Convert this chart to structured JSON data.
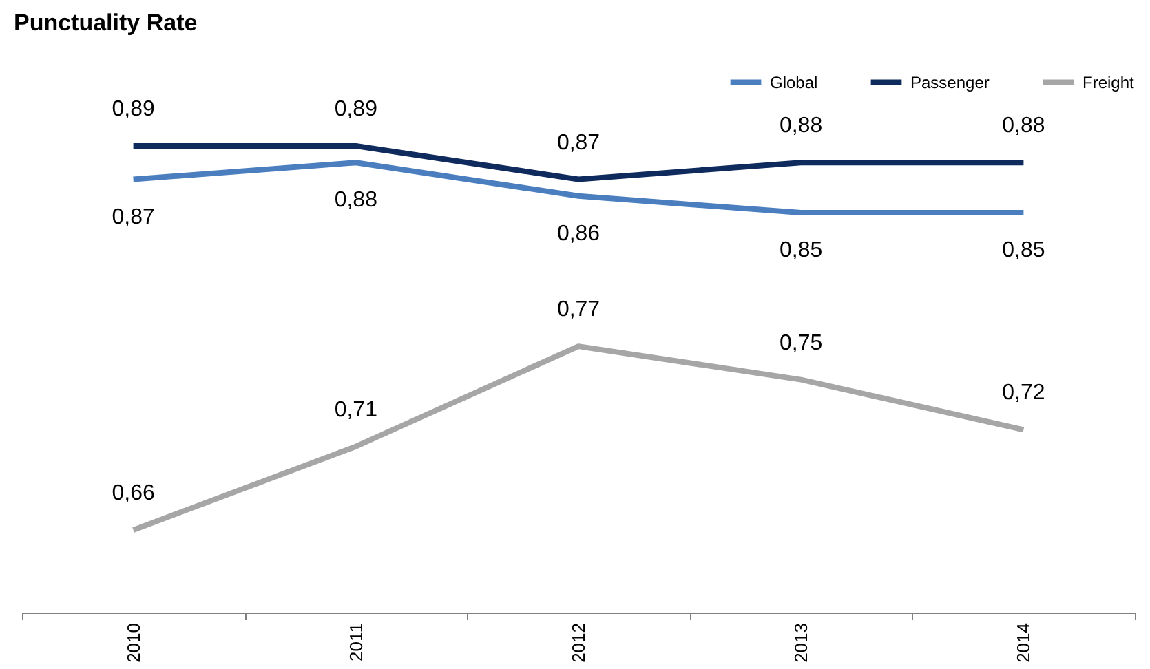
{
  "chart_data": {
    "type": "line",
    "title": "Punctuality Rate",
    "categories": [
      "2010",
      "2011",
      "2012",
      "2013",
      "2014"
    ],
    "series": [
      {
        "name": "Global",
        "color": "#4a7ebf",
        "values": [
          0.87,
          0.88,
          0.86,
          0.85,
          0.85
        ],
        "value_labels": [
          "0,87",
          "0,88",
          "0,86",
          "0,85",
          "0,85"
        ]
      },
      {
        "name": "Passenger",
        "color": "#0f2a5c",
        "values": [
          0.89,
          0.89,
          0.87,
          0.88,
          0.88
        ],
        "value_labels": [
          "0,89",
          "0,89",
          "0,87",
          "0,88",
          "0,88"
        ]
      },
      {
        "name": "Freight",
        "color": "#a6a6a6",
        "values": [
          0.66,
          0.71,
          0.77,
          0.75,
          0.72
        ],
        "value_labels": [
          "0,66",
          "0,71",
          "0,77",
          "0,75",
          "0,72"
        ]
      }
    ],
    "tick_labels": "x",
    "legend": "top right",
    "grid": false,
    "marker": "none",
    "line_style": "solid"
  }
}
